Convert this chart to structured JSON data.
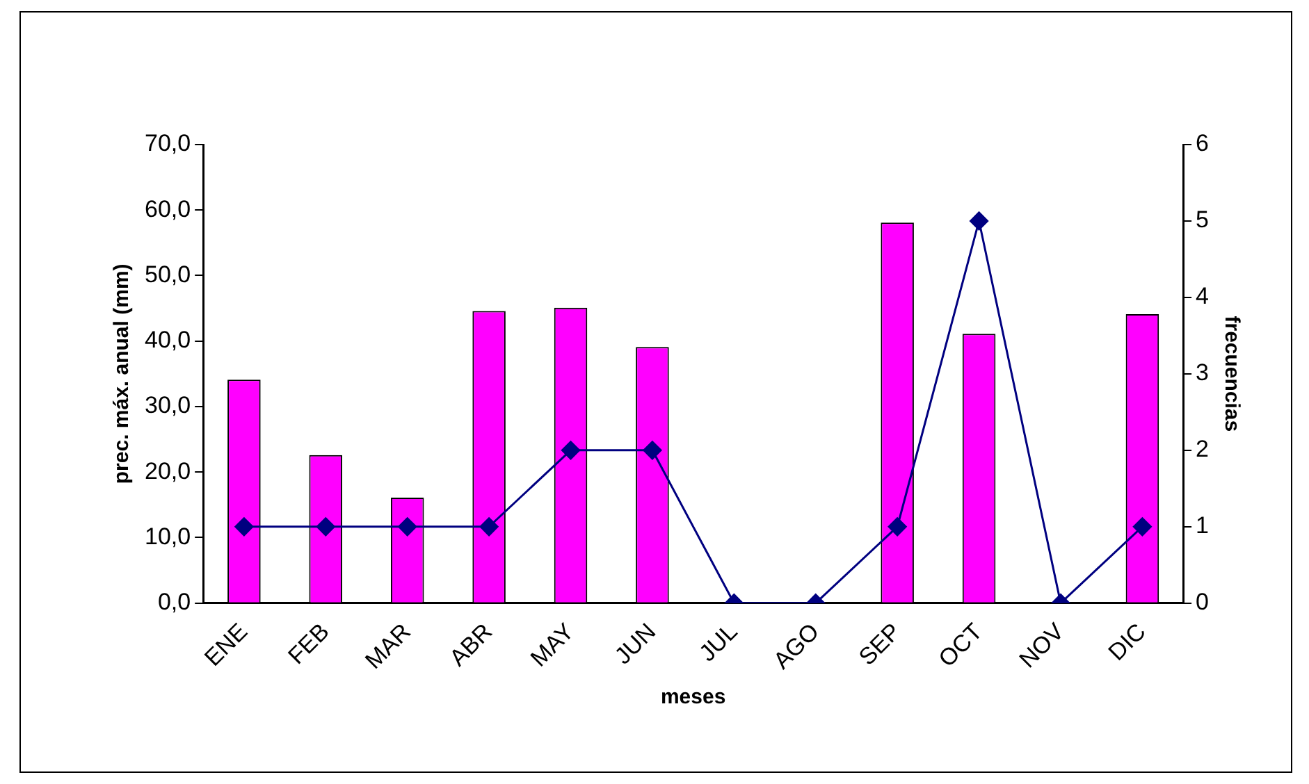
{
  "chart_data": {
    "type": "bar",
    "xlabel": "meses",
    "ylabel": "prec. máx. anual (mm)",
    "y2label": "frecuencias",
    "categories": [
      "ENE",
      "FEB",
      "MAR",
      "ABR",
      "MAY",
      "JUN",
      "JUL",
      "AGO",
      "SEP",
      "OCT",
      "NOV",
      "DIC"
    ],
    "series": [
      {
        "color": "#ff00ff",
        "values": [
          34.1,
          22.6,
          16.1,
          44.6,
          45.1,
          39.1,
          null,
          null,
          58.1,
          41.1,
          null,
          44.1
        ]
      },
      {
        "type": "line",
        "axis": "y2",
        "color": "#000080",
        "marker": "diamond",
        "values": [
          1,
          1,
          1,
          1,
          2,
          2,
          0,
          0,
          1,
          5,
          0,
          1
        ]
      }
    ],
    "ylim": [
      0,
      70
    ],
    "yticks": [
      {
        "value": 0,
        "label": "0,0"
      },
      {
        "value": 10,
        "label": "10,0"
      },
      {
        "value": 20,
        "label": "20,0"
      },
      {
        "value": 30,
        "label": "30,0"
      },
      {
        "value": 40,
        "label": "40,0"
      },
      {
        "value": 50,
        "label": "50,0"
      },
      {
        "value": 60,
        "label": "60,0"
      },
      {
        "value": 70,
        "label": "70,0"
      }
    ],
    "y2lim": [
      0,
      6
    ],
    "y2ticks": [
      0,
      1,
      2,
      3,
      4,
      5,
      6
    ],
    "grid": false,
    "legend": false
  }
}
